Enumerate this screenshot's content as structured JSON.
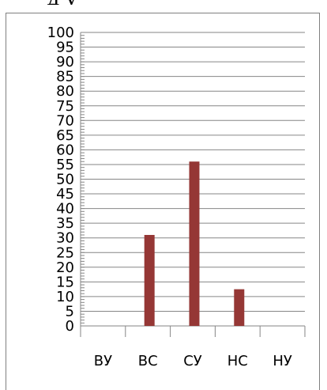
{
  "page": {
    "top_fragment": "д     у"
  },
  "chart_data": {
    "type": "bar",
    "categories": [
      "ВУ",
      "ВС",
      "СУ",
      "НС",
      "НУ"
    ],
    "values": [
      0,
      31,
      56,
      12.5,
      0
    ],
    "ylim": [
      0,
      100
    ],
    "ytick_step": 5,
    "yticks": [
      "0",
      "5",
      "10",
      "15",
      "20",
      "25",
      "30",
      "35",
      "40",
      "45",
      "50",
      "55",
      "60",
      "65",
      "70",
      "75",
      "80",
      "85",
      "90",
      "95",
      "100"
    ],
    "grid": true,
    "bar_color": "#953735",
    "grid_color": "#868686",
    "axis_color": "#868686"
  }
}
